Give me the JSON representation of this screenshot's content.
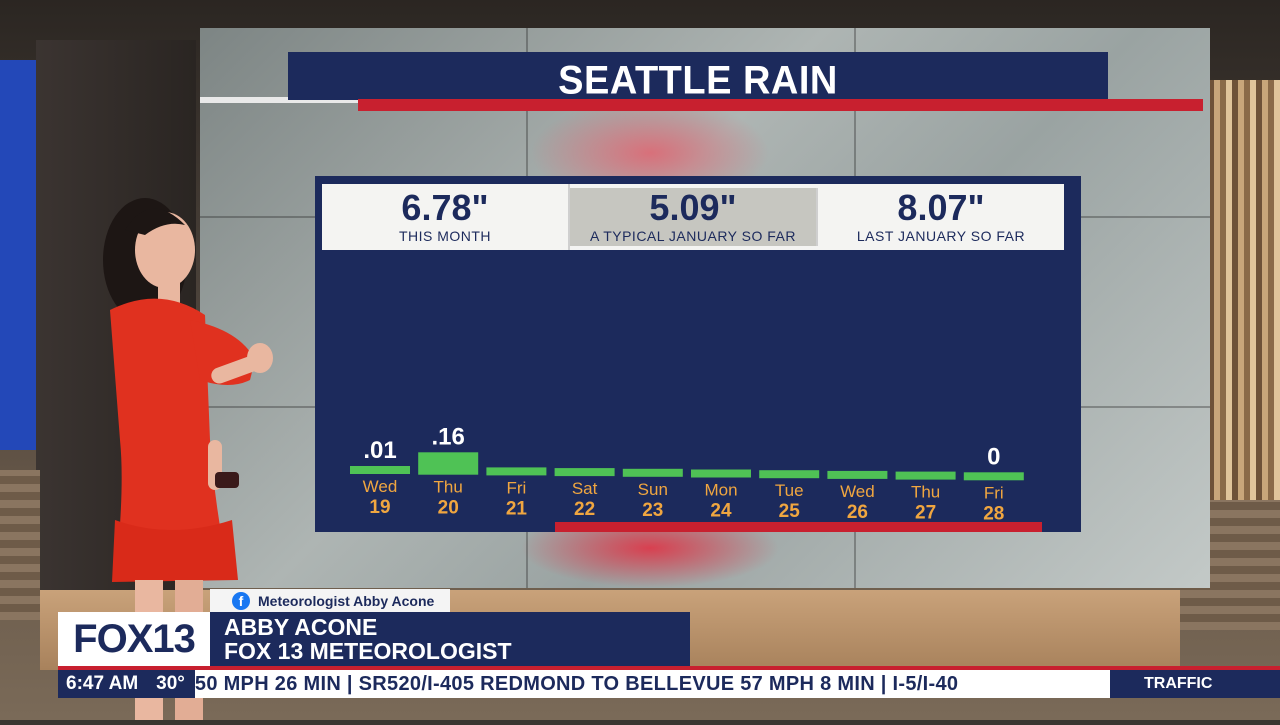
{
  "title": "SEATTLE RAIN",
  "stats": [
    {
      "value": "6.78\"",
      "label": "THIS MONTH"
    },
    {
      "value": "5.09\"",
      "label": "A TYPICAL JANUARY SO FAR"
    },
    {
      "value": "8.07\"",
      "label": "LAST JANUARY SO FAR"
    }
  ],
  "chart_data": {
    "type": "bar",
    "categories": [
      "Wed 19",
      "Thu 20",
      "Fri 21",
      "Sat 22",
      "Sun 23",
      "Mon 24",
      "Tue 25",
      "Wed 26",
      "Thu 27",
      "Fri 28"
    ],
    "day_names": [
      "Wed",
      "Thu",
      "Fri",
      "Sat",
      "Sun",
      "Mon",
      "Tue",
      "Wed",
      "Thu",
      "Fri"
    ],
    "day_nums": [
      "19",
      "20",
      "21",
      "22",
      "23",
      "24",
      "25",
      "26",
      "27",
      "28"
    ],
    "values": [
      0.01,
      0.16,
      0,
      0,
      0,
      0,
      0,
      0,
      0,
      0
    ],
    "labels": [
      ".01",
      ".16",
      "",
      "",
      "",
      "",
      "",
      "",
      "",
      "0"
    ],
    "bar_color": "#4fc255",
    "label_color": "#ffffff",
    "day_color": "#f0a640"
  },
  "social": {
    "icon": "facebook-icon",
    "handle": "Meteorologist Abby Acone"
  },
  "station": {
    "logo": "FOX13"
  },
  "lower_third": {
    "name": "ABBY ACONE",
    "role": "FOX 13 METEOROLOGIST"
  },
  "ticker": {
    "time": "6:47 AM",
    "temp": "30°",
    "text": "50 MPH  26 MIN  |  SR520/I-405  REDMOND  TO  BELLEVUE  57  MPH  8  MIN  |  I-5/I-40",
    "section": "TRAFFIC"
  },
  "colors": {
    "navy": "#1c2a5c",
    "red": "#c8202f",
    "green": "#4fc255",
    "orange": "#f0a640"
  }
}
